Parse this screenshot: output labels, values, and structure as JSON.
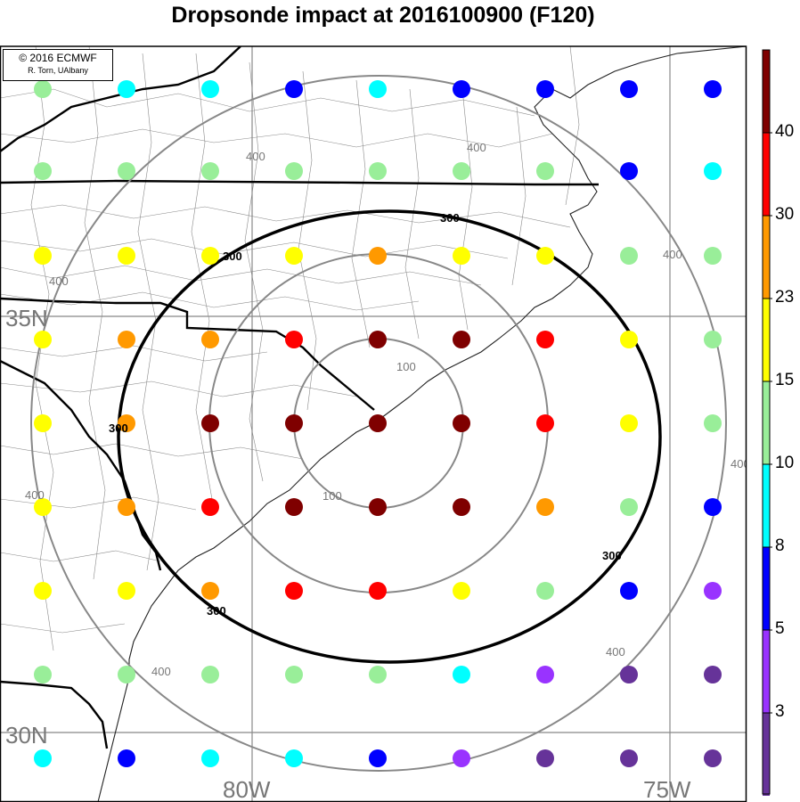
{
  "title": "Dropsonde impact at 2016100900 (F120)",
  "credit": {
    "line1": "© 2016 ECMWF",
    "line2": "R. Torn, UAlbany"
  },
  "lat_labels": [
    "35N",
    "30N"
  ],
  "lon_labels": [
    "80W",
    "75W"
  ],
  "contour_labels": [
    "100",
    "100",
    "300",
    "300",
    "300",
    "300",
    "300",
    "400",
    "400",
    "400",
    "400",
    "400",
    "400",
    "400",
    "400"
  ],
  "colorbar": {
    "tick_labels": [
      "40",
      "30",
      "23",
      "15",
      "10",
      "8",
      "5",
      "3"
    ],
    "colors": [
      "#7f0000",
      "#ff0000",
      "#ff9900",
      "#ffff00",
      "#99ee99",
      "#00ffff",
      "#0000ff",
      "#9933ff",
      "#663399"
    ]
  },
  "grid_points": [
    [
      "lg",
      "cy",
      "cy",
      "bl",
      "cy",
      "bl",
      "bl",
      "bl",
      "bl"
    ],
    [
      "lg",
      "lg",
      "lg",
      "lg",
      "lg",
      "lg",
      "lg",
      "bl",
      "cy"
    ],
    [
      "ye",
      "ye",
      "ye",
      "ye",
      "or",
      "ye",
      "ye",
      "lg",
      "lg"
    ],
    [
      "ye",
      "or",
      "or",
      "re",
      "dr",
      "dr",
      "re",
      "ye",
      "lg"
    ],
    [
      "ye",
      "or",
      "dr",
      "dr",
      "dr",
      "dr",
      "re",
      "ye",
      "lg"
    ],
    [
      "ye",
      "or",
      "re",
      "dr",
      "dr",
      "dr",
      "or",
      "lg",
      "bl"
    ],
    [
      "ye",
      "ye",
      "or",
      "re",
      "re",
      "ye",
      "lg",
      "bl",
      "pu"
    ],
    [
      "lg",
      "lg",
      "lg",
      "lg",
      "lg",
      "cy",
      "pu",
      "dp",
      "dp"
    ],
    [
      "cy",
      "bl",
      "cy",
      "cy",
      "bl",
      "pu",
      "dp",
      "dp",
      "dp"
    ]
  ],
  "color_key": {
    "dr": "#7f0000",
    "re": "#ff0000",
    "or": "#ff9900",
    "ye": "#ffff00",
    "lg": "#99ee99",
    "cy": "#00ffff",
    "bl": "#0000ff",
    "pu": "#9933ff",
    "dp": "#663399"
  }
}
